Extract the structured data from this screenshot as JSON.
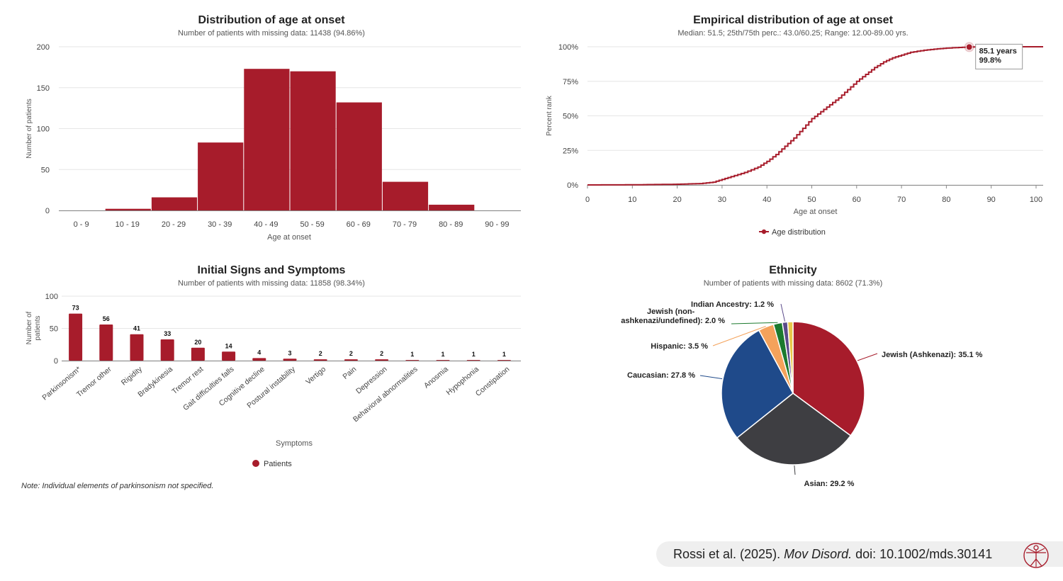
{
  "colors": {
    "accent": "#a71c2b",
    "dark": "#3e3e42",
    "blue": "#1f4a8a",
    "orange": "#f4a25b",
    "green": "#1c7a2e",
    "purple": "#5a4a8a",
    "yellow": "#e8c84a",
    "grid": "#e6e6e6",
    "axis": "#888888"
  },
  "chart_data": [
    {
      "type": "bar",
      "title": "Distribution of age at onset",
      "subtitle": "Number of patients with missing data: 11438 (94.86%)",
      "xlabel": "Age at onset",
      "ylabel": "Number of patients",
      "ylim": [
        0,
        200
      ],
      "yticks": [
        "0",
        "50",
        "100",
        "150",
        "200"
      ],
      "categories": [
        "0 - 9",
        "10 - 19",
        "20 - 29",
        "30 - 39",
        "40 - 49",
        "50 - 59",
        "60 - 69",
        "70 - 79",
        "80 - 89",
        "90 - 99"
      ],
      "values": [
        0,
        2,
        16,
        83,
        173,
        170,
        132,
        35,
        7,
        0
      ]
    },
    {
      "type": "line",
      "title": "Empirical distribution of age at onset",
      "subtitle": "Median: 51.5; 25th/75th perc.: 43.0/60.25; Range: 12.00-89.00 yrs.",
      "xlabel": "Age at onset",
      "ylabel": "Percent rank",
      "xlim": [
        0,
        100
      ],
      "ylim": [
        0,
        100
      ],
      "xticks": [
        "0",
        "10",
        "20",
        "30",
        "40",
        "50",
        "60",
        "70",
        "80",
        "90",
        "100"
      ],
      "yticks": [
        "0%",
        "25%",
        "50%",
        "75%",
        "100%"
      ],
      "series": [
        {
          "name": "Age distribution",
          "x": [
            0,
            10,
            15,
            20,
            25,
            28,
            30,
            32,
            35,
            38,
            40,
            42,
            44,
            46,
            48,
            50,
            52,
            54,
            56,
            58,
            60,
            62,
            64,
            66,
            68,
            70,
            72,
            75,
            78,
            80,
            82,
            85.1,
            87,
            89,
            100
          ],
          "y": [
            0,
            0.1,
            0.3,
            0.5,
            1,
            2,
            4,
            6,
            9,
            13,
            17,
            22,
            28,
            34,
            41,
            48,
            53,
            58,
            63,
            69,
            75,
            80,
            85,
            89,
            92,
            94,
            96,
            97.5,
            98.5,
            99,
            99.4,
            99.8,
            99.9,
            100,
            100
          ]
        }
      ],
      "tooltip": {
        "label_x": "85.1 years",
        "label_y": "99.8%",
        "x": 85.1,
        "y": 99.8
      },
      "legend": "bottom-center"
    },
    {
      "type": "bar",
      "title": "Initial Signs and Symptoms",
      "subtitle": "Number of patients with missing data: 11858 (98.34%)",
      "xlabel": "Symptoms",
      "ylabel": "Number of patients",
      "ylim": [
        0,
        100
      ],
      "yticks": [
        "0",
        "50",
        "100"
      ],
      "categories": [
        "Parkinsonism*",
        "Tremor other",
        "Rigidity",
        "Bradykinesia",
        "Tremor rest",
        "Gait difficulties falls",
        "Cognitive decline",
        "Postural instability",
        "Vertigo",
        "Pain",
        "Depression",
        "Behavioral abnormalities",
        "Anosmia",
        "Hypophonia",
        "Constipation"
      ],
      "values": [
        73,
        56,
        41,
        33,
        20,
        14,
        4,
        3,
        2,
        2,
        2,
        1,
        1,
        1,
        1
      ],
      "legend_label": "Patients",
      "legend": "bottom-center"
    },
    {
      "type": "pie",
      "title": "Ethnicity",
      "subtitle": "Number of patients with missing data: 8602 (71.3%)",
      "slices": [
        {
          "name": "Jewish (Ashkenazi)",
          "value": 35.1,
          "label": "Jewish (Ashkenazi): 35.1 %",
          "color": "#a71c2b"
        },
        {
          "name": "Asian",
          "value": 29.2,
          "label": "Asian: 29.2 %",
          "color": "#3e3e42"
        },
        {
          "name": "Caucasian",
          "value": 27.8,
          "label": "Caucasian: 27.8 %",
          "color": "#1f4a8a"
        },
        {
          "name": "Hispanic",
          "value": 3.5,
          "label": "Hispanic: 3.5 %",
          "color": "#f4a25b"
        },
        {
          "name": "Jewish (non-ashkenazi/undefined)",
          "value": 2.0,
          "label": "Jewish (non-ashkenazi/undefined): 2.0 %",
          "label_lines": [
            "Jewish (non-",
            "ashkenazi/undefined): 2.0 %"
          ],
          "color": "#1c7a2e"
        },
        {
          "name": "Indian Ancestry",
          "value": 1.2,
          "label": "Indian Ancestry: 1.2 %",
          "color": "#5a4a8a"
        },
        {
          "name": "other",
          "value": 1.2,
          "label": "",
          "color": "#e8c84a"
        }
      ]
    }
  ],
  "note": "Note: Individual elements of parkinsonism not specified.",
  "citation": {
    "authors": "Rossi et al. (2025). ",
    "journal": "Mov Disord.",
    "doi": " doi: 10.1002/mds.30141"
  },
  "logo_icon": "vitruvian-man-icon"
}
